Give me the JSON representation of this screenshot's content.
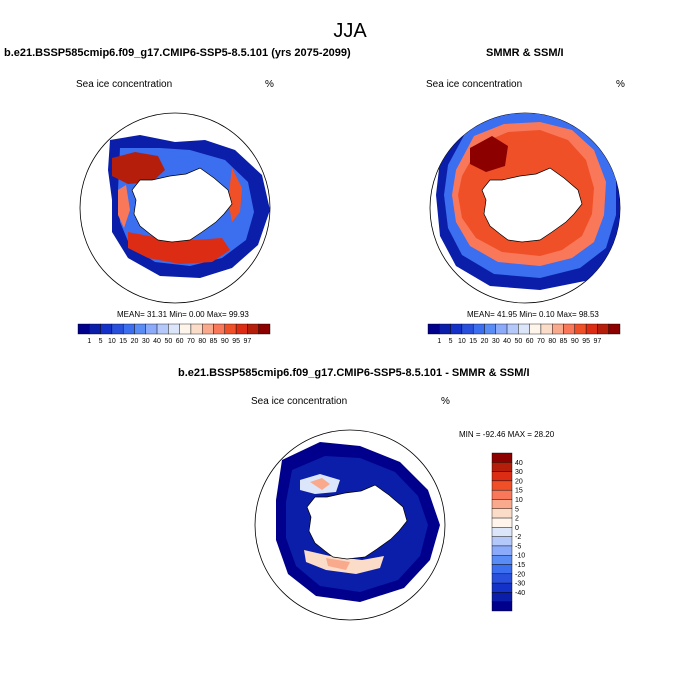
{
  "figure": {
    "title": "JJA",
    "bottom_title": "b.e21.BSSP585cmip6.f09_g17.CMIP6-SSP5-8.5.101 - SMMR & SSM/I"
  },
  "panels": [
    {
      "title": "b.e21.BSSP585cmip6.f09_g17.CMIP6-SSP5-8.5.101 (yrs 2075-2099)",
      "left_label": "Sea ice concentration",
      "right_label": "%",
      "stats": "MEAN=  31.31  Min=   0.00  Max=  99.93"
    },
    {
      "title": "SMMR & SSM/I",
      "left_label": "Sea ice concentration",
      "right_label": "%",
      "stats": "MEAN=  41.95  Min=   0.10  Max=  98.53"
    },
    {
      "title": "",
      "left_label": "Sea ice concentration",
      "right_label": "%",
      "stats": "MIN = -92.46 MAX =  28.20"
    }
  ],
  "colorbar_horizontal": {
    "labels": [
      "1",
      "5",
      "10",
      "15",
      "20",
      "30",
      "40",
      "50",
      "60",
      "70",
      "80",
      "85",
      "90",
      "95",
      "97"
    ],
    "colors": [
      "#00008c",
      "#0a1eaa",
      "#1432c8",
      "#2850dc",
      "#3c6ef0",
      "#5a8cf5",
      "#8caafa",
      "#b4c8fa",
      "#dce6fa",
      "#fff5eb",
      "#fadcc8",
      "#faaa8c",
      "#fa785a",
      "#f05028",
      "#dc2d14",
      "#b41e0a",
      "#8c0000"
    ]
  },
  "colorbar_vertical": {
    "labels": [
      "40",
      "30",
      "20",
      "15",
      "10",
      "5",
      "2",
      "0",
      "-2",
      "-5",
      "-10",
      "-15",
      "-20",
      "-30",
      "-40"
    ],
    "colors": [
      "#8c0000",
      "#b41e0a",
      "#dc2d14",
      "#f05028",
      "#fa785a",
      "#faaa8c",
      "#fadcc8",
      "#fff5eb",
      "#dce6fa",
      "#b4c8fa",
      "#8caafa",
      "#5a8cf5",
      "#3c6ef0",
      "#2850dc",
      "#1432c8",
      "#0a1eaa",
      "#00008c"
    ]
  }
}
